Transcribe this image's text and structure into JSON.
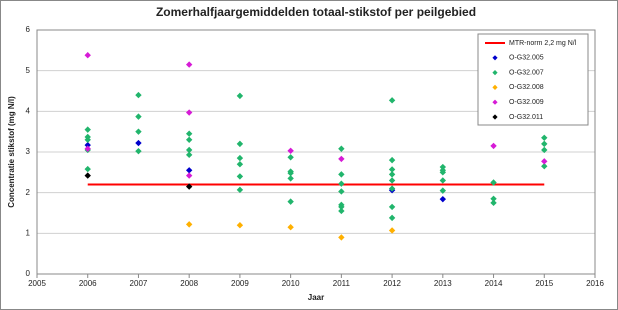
{
  "chart_data": {
    "type": "scatter",
    "title": "Zomerhalfjaargemiddelden totaal-stikstof per peilgebied",
    "x_label": "Jaar",
    "y_label": "Concentratie stikstof (mg N/l)",
    "xlim": [
      2005,
      2016
    ],
    "xticks": [
      2005,
      2006,
      2007,
      2008,
      2009,
      2010,
      2011,
      2012,
      2013,
      2014,
      2015,
      2016
    ],
    "ylim": [
      0,
      6
    ],
    "yticks": [
      0,
      1,
      2,
      3,
      4,
      5,
      6
    ],
    "grid": true,
    "legend": "top-right",
    "reference_line": {
      "name": "MTR-norm 2,2 mg N/l",
      "value": 2.2,
      "x": [
        2006,
        2015
      ],
      "color": "#ff0000"
    },
    "series": [
      {
        "name": "O-G32.005",
        "color": "#0000cc",
        "x": [
          2006,
          2007,
          2008,
          2012,
          2013
        ],
        "values": [
          3.17,
          3.22,
          2.55,
          2.06,
          1.84
        ]
      },
      {
        "name": "O-G32.007",
        "color": "#21b56c",
        "x": [
          2006,
          2006,
          2006,
          2006,
          2006,
          2007,
          2007,
          2007,
          2007,
          2008,
          2008,
          2008,
          2008,
          2009,
          2009,
          2009,
          2009,
          2009,
          2009,
          2010,
          2010,
          2010,
          2010,
          2010,
          2011,
          2011,
          2011,
          2011,
          2011,
          2011,
          2011,
          2012,
          2012,
          2012,
          2012,
          2012,
          2012,
          2012,
          2012,
          2013,
          2013,
          2013,
          2013,
          2013,
          2014,
          2014,
          2014,
          2015,
          2015,
          2015,
          2015
        ],
        "values": [
          3.55,
          3.37,
          3.3,
          3.05,
          2.58,
          4.4,
          3.87,
          3.5,
          3.02,
          3.45,
          3.3,
          3.05,
          2.93,
          4.38,
          3.2,
          2.85,
          2.7,
          2.4,
          2.07,
          2.87,
          2.52,
          2.48,
          2.35,
          1.78,
          3.08,
          2.45,
          2.22,
          2.03,
          1.7,
          1.65,
          1.55,
          4.27,
          2.8,
          2.57,
          2.45,
          2.3,
          2.1,
          1.65,
          1.38,
          2.63,
          2.55,
          2.5,
          2.3,
          2.05,
          2.25,
          1.85,
          1.75,
          3.35,
          3.2,
          3.05,
          2.65
        ]
      },
      {
        "name": "O-G32.008",
        "color": "#ffb000",
        "x": [
          2008,
          2009,
          2010,
          2011,
          2012
        ],
        "values": [
          1.22,
          1.2,
          1.15,
          0.9,
          1.07
        ]
      },
      {
        "name": "O-G32.009",
        "color": "#d61bd6",
        "x": [
          2006,
          2006,
          2008,
          2008,
          2008,
          2010,
          2011,
          2014,
          2015
        ],
        "values": [
          5.38,
          3.08,
          5.15,
          3.97,
          2.42,
          3.03,
          2.83,
          3.15,
          2.77
        ]
      },
      {
        "name": "O-G32.011",
        "color": "#000000",
        "x": [
          2006,
          2008
        ],
        "values": [
          2.42,
          2.15
        ]
      }
    ]
  }
}
